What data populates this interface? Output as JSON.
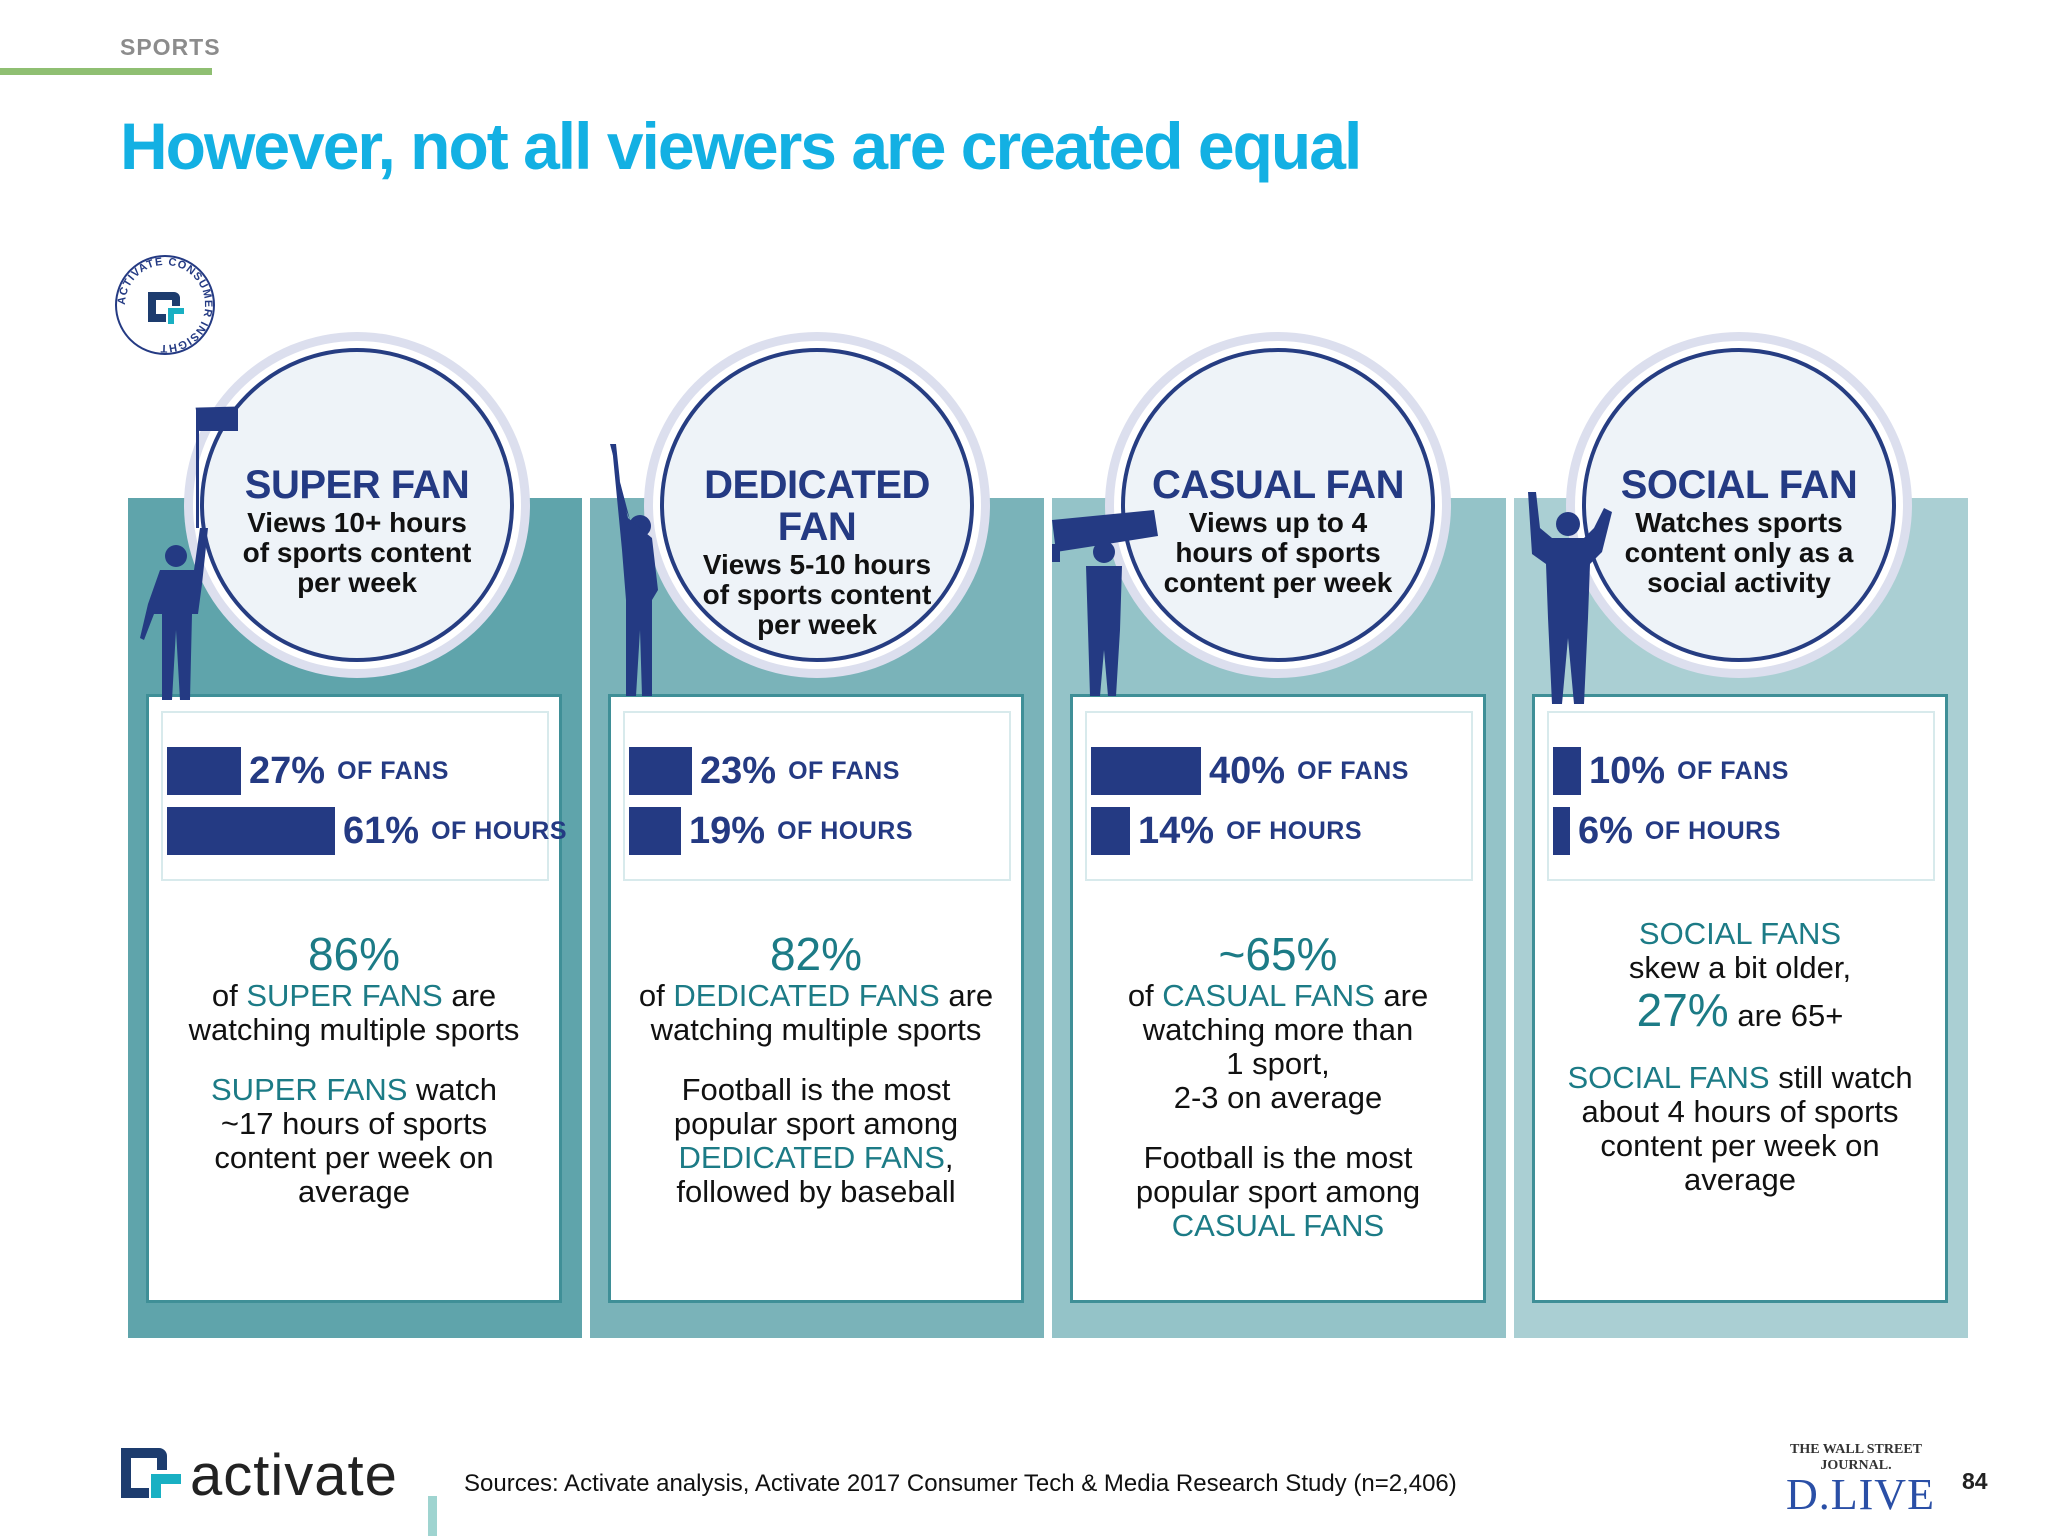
{
  "section_label": "SPORTS",
  "headline": "However, not all viewers are created equal",
  "badge": {
    "text": "ACTIVATE CONSUMER INSIGHT"
  },
  "columns": [
    {
      "title": "SUPER FAN",
      "desc": [
        "Views 10+ hours",
        "of sports content",
        "per week"
      ],
      "fans_pct": "27%",
      "fans_value": 27,
      "hours_pct": "61%",
      "hours_value": 61,
      "fans_label": "OF FANS",
      "hours_label": "OF HOURS",
      "stat": "86%",
      "line1_pre": "of ",
      "line1_hl": "SUPER FANS",
      "line1_post": " are",
      "line2": "watching multiple sports",
      "p2_hl": "SUPER FANS",
      "p2_post": " watch",
      "p2_lines": [
        "~17 hours of sports",
        "content per week on",
        "average"
      ]
    },
    {
      "title": "DEDICATED FAN",
      "desc": [
        "Views 5-10 hours",
        "of sports content",
        "per week"
      ],
      "fans_pct": "23%",
      "fans_value": 23,
      "hours_pct": "19%",
      "hours_value": 19,
      "fans_label": "OF FANS",
      "hours_label": "OF HOURS",
      "stat": "82%",
      "line1_pre": "of ",
      "line1_hl": "DEDICATED FANS",
      "line1_post": " are",
      "line2": "watching multiple sports",
      "p2_lines": [
        "Football is the most",
        "popular sport among"
      ],
      "p2_hl": "DEDICATED FANS",
      "p2_hl_post": ",",
      "p2_last": "followed by baseball"
    },
    {
      "title": "CASUAL FAN",
      "desc": [
        "Views up to 4",
        "hours of sports",
        "content per week"
      ],
      "fans_pct": "40%",
      "fans_value": 40,
      "hours_pct": "14%",
      "hours_value": 14,
      "fans_label": "OF FANS",
      "hours_label": "OF HOURS",
      "stat": "~65%",
      "line1_pre": "of ",
      "line1_hl": "CASUAL FANS",
      "line1_post": " are",
      "lines": [
        "watching more than",
        "1 sport,",
        "2-3 on average"
      ],
      "p2_lines": [
        "Football is the most",
        "popular sport among"
      ],
      "p2_hl": "CASUAL FANS"
    },
    {
      "title": "SOCIAL FAN",
      "desc": [
        "Watches sports",
        "content only as a",
        "social activity"
      ],
      "fans_pct": "10%",
      "fans_value": 10,
      "hours_pct": "6%",
      "hours_value": 6,
      "fans_label": "OF FANS",
      "hours_label": "OF HOURS",
      "head_hl": "SOCIAL FANS",
      "head_line": "skew a bit older,",
      "stat": "27%",
      "stat_post": " are 65+",
      "p2_hl": "SOCIAL FANS",
      "p2_post": " still watch",
      "p2_lines": [
        "about 4 hours of sports",
        "content per week on",
        "average"
      ]
    }
  ],
  "colors": {
    "col_bg": [
      "#5fa4ab",
      "#7ab3b9",
      "#94c3c8",
      "#aacfd3"
    ],
    "bar": "#243a83",
    "accent": "#1c7b86",
    "headline": "#13b0e3"
  },
  "footer": {
    "logo_text": "activate",
    "sources": "Sources: Activate analysis, Activate 2017 Consumer Tech & Media Research Study (n=2,406)",
    "wsj_small": "THE WALL STREET JOURNAL.",
    "wsj_big": "D.LIVE",
    "page": "84"
  }
}
